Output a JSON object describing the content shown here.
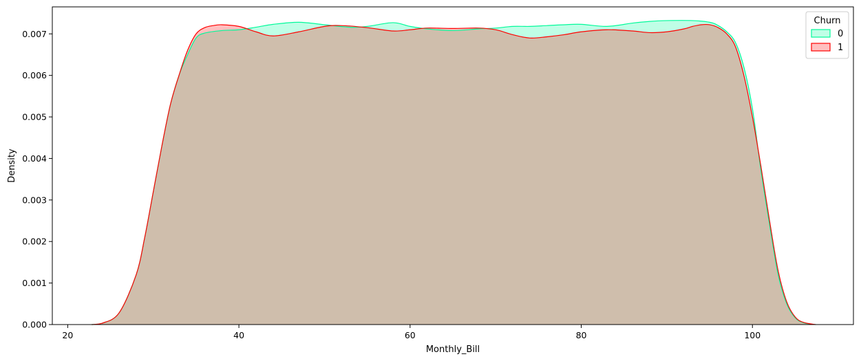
{
  "chart_data": {
    "type": "area",
    "title": "",
    "xlabel": "Monthly_Bill",
    "ylabel": "Density",
    "xlim": [
      18.2,
      111.8
    ],
    "ylim": [
      0,
      0.00765
    ],
    "xticks": [
      20,
      40,
      60,
      80,
      100
    ],
    "yticks": [
      0.0,
      0.001,
      0.002,
      0.003,
      0.004,
      0.005,
      0.006,
      0.007
    ],
    "ytick_labels": [
      "0.000",
      "0.001",
      "0.002",
      "0.003",
      "0.004",
      "0.005",
      "0.006",
      "0.007"
    ],
    "grid": false,
    "legend": {
      "title": "Churn",
      "placement": "top-right"
    },
    "series": [
      {
        "name": "0",
        "color": "#00fa9a",
        "fill": "#00fa9a",
        "x": [
          22.8,
          24,
          26,
          28,
          29,
          30,
          31,
          32,
          33,
          34,
          35,
          36,
          38,
          40,
          42,
          44,
          47,
          50,
          53,
          55,
          58,
          60,
          62,
          65,
          68,
          70,
          72,
          74,
          76,
          78,
          80,
          83,
          86,
          88,
          90,
          93,
          95,
          96,
          97,
          98,
          99,
          100,
          101,
          102,
          103,
          104,
          105,
          106,
          107.4
        ],
        "y": [
          0.0,
          3e-05,
          0.00028,
          0.0012,
          0.0021,
          0.0032,
          0.0043,
          0.0053,
          0.006,
          0.0065,
          0.0069,
          0.00702,
          0.00708,
          0.0071,
          0.00716,
          0.00723,
          0.00728,
          0.00722,
          0.00716,
          0.00718,
          0.00727,
          0.00718,
          0.00712,
          0.00708,
          0.00712,
          0.00714,
          0.00718,
          0.00718,
          0.0072,
          0.00722,
          0.00723,
          0.00718,
          0.00726,
          0.0073,
          0.00732,
          0.00732,
          0.00728,
          0.0072,
          0.00705,
          0.0068,
          0.0062,
          0.0052,
          0.0037,
          0.0024,
          0.0012,
          0.0005,
          0.00016,
          4e-05,
          0.0
        ]
      },
      {
        "name": "1",
        "color": "#ff0000",
        "fill": "#ff0000",
        "x": [
          22.8,
          24,
          26,
          28,
          29,
          30,
          31,
          32,
          33,
          34,
          35,
          36,
          37,
          38,
          40,
          42,
          44,
          47,
          50,
          52,
          55,
          58,
          60,
          62,
          65,
          68,
          70,
          72,
          74,
          76,
          78,
          80,
          83,
          86,
          88,
          90,
          92,
          93,
          94,
          95,
          96,
          97,
          98,
          99,
          100,
          101,
          102,
          103,
          104,
          105,
          106,
          107.4
        ],
        "y": [
          0.0,
          3e-05,
          0.00028,
          0.0012,
          0.0021,
          0.0032,
          0.0043,
          0.0053,
          0.006,
          0.0066,
          0.007,
          0.00715,
          0.0072,
          0.00722,
          0.00718,
          0.00705,
          0.00695,
          0.00705,
          0.00718,
          0.0072,
          0.00715,
          0.00707,
          0.0071,
          0.00714,
          0.00713,
          0.00714,
          0.0071,
          0.00698,
          0.0069,
          0.00693,
          0.00698,
          0.00705,
          0.0071,
          0.00707,
          0.00703,
          0.00705,
          0.00712,
          0.00718,
          0.00722,
          0.00722,
          0.00715,
          0.007,
          0.0067,
          0.006,
          0.005,
          0.0038,
          0.0025,
          0.0013,
          0.00055,
          0.00018,
          5e-05,
          0.0
        ]
      }
    ]
  }
}
